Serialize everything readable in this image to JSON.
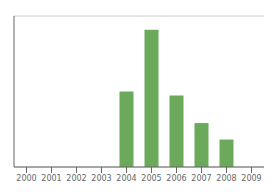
{
  "chart_data": {
    "type": "bar",
    "categories": [
      "2000",
      "2001",
      "2002",
      "2003",
      "2004",
      "2005",
      "2006",
      "2007",
      "2008",
      "2009"
    ],
    "values": [
      0,
      0,
      0,
      0,
      55,
      100,
      52,
      32,
      20,
      0
    ],
    "color": "#6aaa5a",
    "ylim": [
      0,
      110
    ],
    "yticks": [
      0,
      20,
      40,
      60,
      80,
      100
    ],
    "grid": true,
    "tick_labels": "x"
  }
}
